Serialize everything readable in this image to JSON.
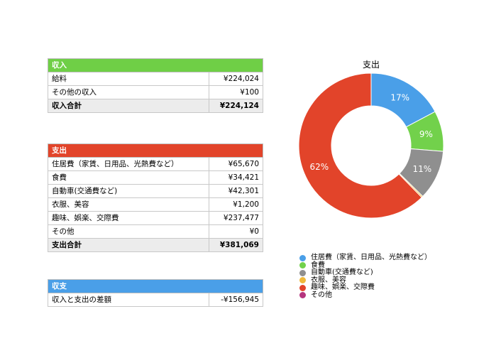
{
  "income": {
    "title": "収入",
    "rows": [
      {
        "label": "給料",
        "value": "¥224,024"
      },
      {
        "label": "その他の収入",
        "value": "¥100"
      }
    ],
    "total_label": "収入合計",
    "total_value": "¥224,124"
  },
  "expense": {
    "title": "支出",
    "rows": [
      {
        "label": "住居費（家賃、日用品、光熱費など）",
        "value": "¥65,670"
      },
      {
        "label": "食費",
        "value": "¥34,421"
      },
      {
        "label": "自動車(交通費など)",
        "value": "¥42,301"
      },
      {
        "label": "衣服、美容",
        "value": "¥1,200"
      },
      {
        "label": "趣味、娯楽、交際費",
        "value": "¥237,477"
      },
      {
        "label": "その他",
        "value": "¥0"
      }
    ],
    "total_label": "支出合計",
    "total_value": "¥381,069"
  },
  "balance": {
    "title": "収支",
    "rows": [
      {
        "label": "収入と支出の差額",
        "value": "-¥156,945"
      }
    ]
  },
  "chart_data": {
    "type": "pie",
    "donut": true,
    "title": "支出",
    "categories": [
      "住居費（家賃、日用品、光熱費など）",
      "食費",
      "自動車(交通費など)",
      "衣服、美容",
      "趣味、娯楽、交際費",
      "その他"
    ],
    "values": [
      65670,
      34421,
      42301,
      1200,
      237477,
      0
    ],
    "data_labels": [
      "17%",
      "9%",
      "11%",
      "",
      "62%",
      ""
    ],
    "colors": [
      "#4a9fe8",
      "#72d14b",
      "#8f8f8f",
      "#f0b93a",
      "#e2442a",
      "#b5347e"
    ],
    "legend_position": "bottom"
  }
}
